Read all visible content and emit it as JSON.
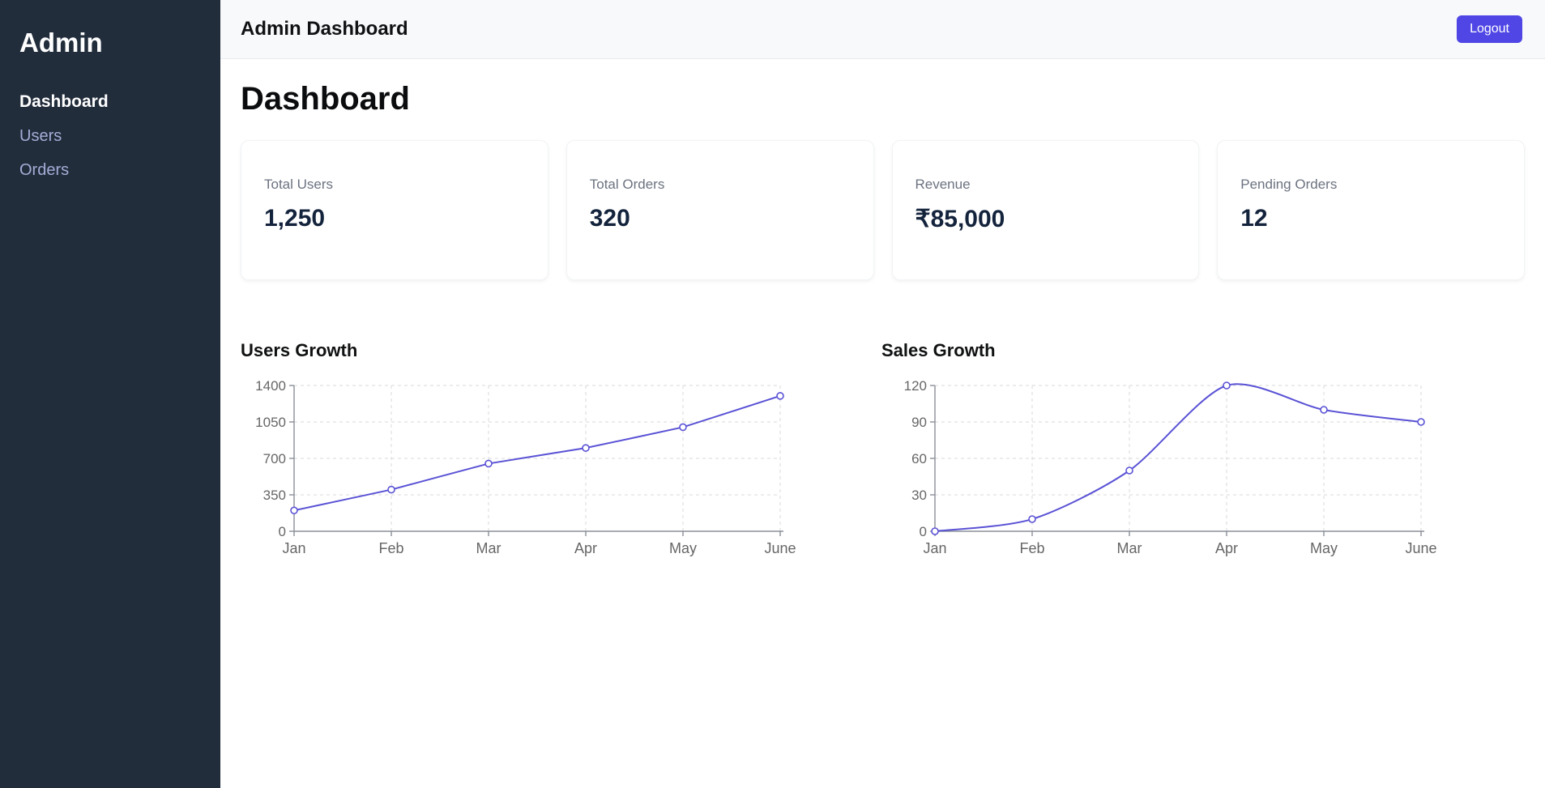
{
  "sidebar": {
    "title": "Admin",
    "items": [
      {
        "label": "Dashboard",
        "active": true
      },
      {
        "label": "Users",
        "active": false
      },
      {
        "label": "Orders",
        "active": false
      }
    ]
  },
  "header": {
    "title": "Admin Dashboard",
    "logout_label": "Logout"
  },
  "main": {
    "heading": "Dashboard",
    "stats": [
      {
        "label": "Total Users",
        "value": "1,250"
      },
      {
        "label": "Total Orders",
        "value": "320"
      },
      {
        "label": "Revenue",
        "value": "₹85,000"
      },
      {
        "label": "Pending Orders",
        "value": "12"
      }
    ]
  },
  "colors": {
    "accent": "#4f46e5",
    "sidebar_bg": "#222d3c",
    "line": "#5a52d5",
    "grid": "#d9d9d9",
    "axis": "#8a8f98"
  },
  "chart_data": [
    {
      "type": "line",
      "title": "Users Growth",
      "categories": [
        "Jan",
        "Feb",
        "Mar",
        "Apr",
        "May",
        "June"
      ],
      "series": [
        {
          "name": "Users",
          "values": [
            200,
            400,
            650,
            800,
            1000,
            1300
          ]
        }
      ],
      "y_ticks": [
        0,
        350,
        700,
        1050,
        1400
      ],
      "ylim": [
        0,
        1400
      ],
      "grid": true,
      "legend": "none",
      "line_color": "#5a52d5",
      "tension": 0.05
    },
    {
      "type": "line",
      "title": "Sales Growth",
      "categories": [
        "Jan",
        "Feb",
        "Mar",
        "Apr",
        "May",
        "June"
      ],
      "series": [
        {
          "name": "Sales",
          "values": [
            0,
            10,
            50,
            120,
            100,
            90
          ]
        }
      ],
      "y_ticks": [
        0,
        30,
        60,
        90,
        120
      ],
      "ylim": [
        0,
        120
      ],
      "grid": true,
      "legend": "none",
      "line_color": "#5a52d5",
      "tension": 0.4
    }
  ]
}
